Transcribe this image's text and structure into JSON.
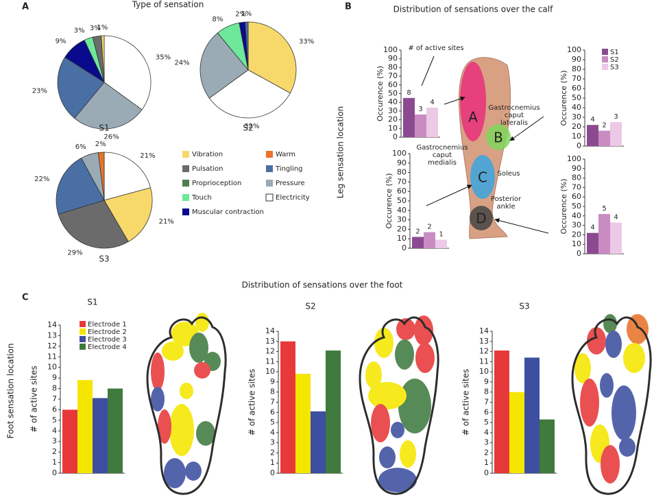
{
  "figure": {
    "panel_labels": [
      "A",
      "B",
      "C"
    ],
    "pie_title": "Type of sensation",
    "calf_title": "Distribution of sensations over the calf",
    "leg_axis_label": "Leg sensation location",
    "foot_title": "Distribution of sensations over the foot",
    "foot_axis_label": "Foot sensation location"
  },
  "sensation_legend": [
    {
      "name": "Vibration",
      "color": "#f7d96b"
    },
    {
      "name": "Pulsation",
      "color": "#6b6b6b"
    },
    {
      "name": "Proprioception",
      "color": "#4e7d4e"
    },
    {
      "name": "Touch",
      "color": "#6ee89a"
    },
    {
      "name": "Muscular contraction",
      "color": "#0a0a8c"
    },
    {
      "name": "Warm",
      "color": "#e8732a"
    },
    {
      "name": "Tingling",
      "color": "#4a6fa5"
    },
    {
      "name": "Pressure",
      "color": "#9aabb5"
    },
    {
      "name": "Electricity",
      "color": "#ffffff"
    }
  ],
  "leg_diagram": {
    "regions": [
      "A",
      "B",
      "C",
      "D"
    ],
    "muscles": [
      [
        "Gastrocnemius",
        "caput",
        "lateralis"
      ],
      [
        "Gastrocnemius",
        "caput",
        "medialis"
      ],
      [
        "Soleus"
      ],
      [
        "Posterior",
        "ankle"
      ]
    ],
    "annotation": "# of active sites"
  },
  "chart_data": [
    {
      "type": "pie",
      "title": "S1",
      "categories": [
        "Electricity",
        "Pressure",
        "Tingling",
        "Muscular contraction",
        "Touch",
        "Pulsation",
        "Vibration"
      ],
      "values": [
        35,
        26,
        23,
        9,
        3,
        3,
        1
      ],
      "value_labels": [
        "35%",
        "26%",
        "23%",
        "9%",
        "3%",
        "3%",
        "1%"
      ]
    },
    {
      "type": "pie",
      "title": "S2",
      "categories": [
        "Vibration",
        "Electricity",
        "Pressure",
        "Touch",
        "Muscular contraction",
        "Tingling"
      ],
      "values": [
        33,
        32,
        24,
        8,
        2,
        1
      ],
      "value_labels": [
        "33%",
        "32%",
        "24%",
        "8%",
        "2%",
        "1%"
      ]
    },
    {
      "type": "pie",
      "title": "S3",
      "categories": [
        "Electricity",
        "Vibration",
        "Pulsation",
        "Tingling",
        "Pressure",
        "Warm"
      ],
      "values": [
        21,
        21,
        29,
        22,
        6,
        2
      ],
      "value_labels": [
        "21%",
        "21%",
        "29%",
        "22%",
        "6%",
        "2%"
      ]
    },
    {
      "type": "bar",
      "ylabel": "Occurence (%)",
      "values": [
        45,
        26,
        34
      ],
      "counts": [
        8,
        3,
        4
      ],
      "colors": [
        "#8b4a8f",
        "#c88cc2",
        "#ecc9e6"
      ],
      "ylim": [
        0,
        100
      ],
      "yticks": [
        0,
        10,
        20,
        30,
        40,
        50,
        60,
        70,
        80,
        90,
        100
      ]
    },
    {
      "type": "bar",
      "ylabel": "Occurence (%)",
      "categories": [
        "S1",
        "S2",
        "S3"
      ],
      "legend": "upper right",
      "values": [
        22,
        16,
        25
      ],
      "counts": [
        4,
        2,
        3
      ],
      "colors": [
        "#8b4a8f",
        "#c88cc2",
        "#ecc9e6"
      ],
      "ylim": [
        0,
        100
      ],
      "yticks": [
        0,
        10,
        20,
        30,
        40,
        50,
        60,
        70,
        80,
        90,
        100
      ]
    },
    {
      "type": "bar",
      "ylabel": "Occurence (%)",
      "values": [
        12,
        17,
        9
      ],
      "counts": [
        2,
        2,
        1
      ],
      "colors": [
        "#8b4a8f",
        "#c88cc2",
        "#ecc9e6"
      ],
      "ylim": [
        0,
        100
      ],
      "yticks": [
        0,
        10,
        20,
        30,
        40,
        50,
        60,
        70,
        80,
        90,
        100
      ]
    },
    {
      "type": "bar",
      "ylabel": "Occurence (%)",
      "values": [
        22,
        42,
        33
      ],
      "counts": [
        4,
        5,
        4
      ],
      "colors": [
        "#8b4a8f",
        "#c88cc2",
        "#ecc9e6"
      ],
      "ylim": [
        0,
        100
      ],
      "yticks": [
        0,
        10,
        20,
        30,
        40,
        50,
        60,
        70,
        80,
        90,
        100
      ]
    },
    {
      "type": "bar",
      "title": "S1",
      "ylabel": "# of active sites",
      "categories": [
        "Electrode 1",
        "Electrode 2",
        "Electrode 3",
        "Electrode 4"
      ],
      "legend": "upper left",
      "values": [
        6,
        8.8,
        7.1,
        8
      ],
      "colors": [
        "#e8393a",
        "#f5e600",
        "#3d4fa0",
        "#3f7a3f"
      ],
      "ylim": [
        0,
        14
      ],
      "yticks": [
        0,
        1,
        2,
        3,
        4,
        5,
        6,
        7,
        8,
        9,
        10,
        11,
        12,
        13,
        14
      ]
    },
    {
      "type": "bar",
      "title": "S2",
      "ylabel": "# of active sites",
      "values": [
        13,
        9.8,
        6.1,
        12.1
      ],
      "colors": [
        "#e8393a",
        "#f5e600",
        "#3d4fa0",
        "#3f7a3f"
      ],
      "ylim": [
        0,
        14
      ],
      "yticks": [
        0,
        1,
        2,
        3,
        4,
        5,
        6,
        7,
        8,
        9,
        10,
        11,
        12,
        13,
        14
      ]
    },
    {
      "type": "bar",
      "title": "S3",
      "ylabel": "# of active sites",
      "values": [
        12.1,
        8,
        11.4,
        5.3
      ],
      "colors": [
        "#e8393a",
        "#f5e600",
        "#3d4fa0",
        "#3f7a3f"
      ],
      "ylim": [
        0,
        14
      ],
      "yticks": [
        0,
        1,
        2,
        3,
        4,
        5,
        6,
        7,
        8,
        9,
        10,
        11,
        12,
        13,
        14
      ]
    }
  ]
}
